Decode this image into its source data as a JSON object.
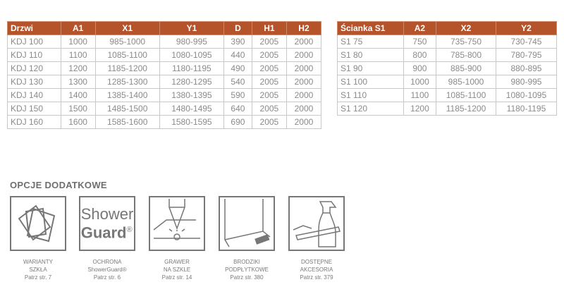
{
  "doors_table": {
    "headers": [
      "Drzwi",
      "A1",
      "X1",
      "Y1",
      "D",
      "H1",
      "H2"
    ],
    "rows": [
      [
        "KDJ 100",
        "1000",
        "985-1000",
        "980-995",
        "390",
        "2005",
        "2000"
      ],
      [
        "KDJ 110",
        "1100",
        "1085-1100",
        "1080-1095",
        "440",
        "2005",
        "2000"
      ],
      [
        "KDJ 120",
        "1200",
        "1185-1200",
        "1180-1195",
        "490",
        "2005",
        "2000"
      ],
      [
        "KDJ 130",
        "1300",
        "1285-1300",
        "1280-1295",
        "540",
        "2005",
        "2000"
      ],
      [
        "KDJ 140",
        "1400",
        "1385-1400",
        "1380-1395",
        "590",
        "2005",
        "2000"
      ],
      [
        "KDJ 150",
        "1500",
        "1485-1500",
        "1480-1495",
        "640",
        "2005",
        "2000"
      ],
      [
        "KDJ 160",
        "1600",
        "1585-1600",
        "1580-1595",
        "690",
        "2005",
        "2000"
      ]
    ]
  },
  "wall_table": {
    "headers": [
      "Ścianka S1",
      "A2",
      "X2",
      "Y2"
    ],
    "rows": [
      [
        "S1 75",
        "750",
        "735-750",
        "730-745"
      ],
      [
        "S1 80",
        "800",
        "785-800",
        "780-795"
      ],
      [
        "S1 90",
        "900",
        "885-900",
        "880-895"
      ],
      [
        "S1 100",
        "1000",
        "985-1000",
        "980-995"
      ],
      [
        "S1 110",
        "1100",
        "1085-1100",
        "1080-1095"
      ],
      [
        "S1 120",
        "1200",
        "1185-1200",
        "1180-1195"
      ]
    ]
  },
  "options": {
    "title": "OPCJE DODATKOWE",
    "logo_line1": "Shower",
    "logo_line2": "Guard",
    "logo_mark": "®",
    "items": [
      {
        "icon": "glass-variants-icon",
        "line1": "WARIANTY",
        "line2": "SZKŁA",
        "ref": "Patrz str. 7"
      },
      {
        "icon": "showerguard-logo",
        "line1": "OCHRONA",
        "line2": "ShowerGuard®",
        "ref": "Patrz str. 6"
      },
      {
        "icon": "engraving-icon",
        "line1": "GRAWER",
        "line2": "NA SZKLE",
        "ref": "Patrz str. 14"
      },
      {
        "icon": "tile-tray-icon",
        "line1": "BRODZIKI",
        "line2": "PODPŁYTKOWE",
        "ref": "Patrz str. 380"
      },
      {
        "icon": "accessories-icon",
        "line1": "DOSTĘPNE",
        "line2": "AKCESORIA",
        "ref": "Patrz str. 379"
      }
    ]
  },
  "colors": {
    "header": "#b5532a"
  }
}
